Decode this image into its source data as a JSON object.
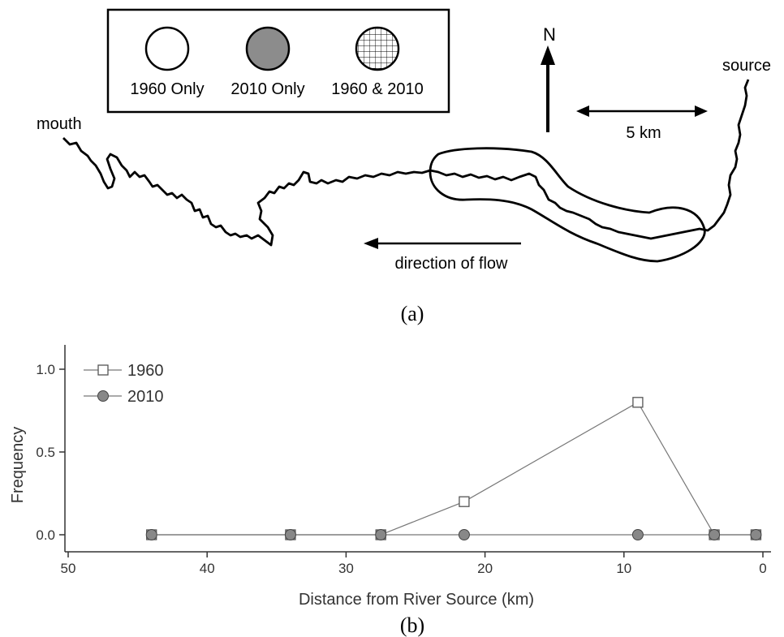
{
  "panel_a": {
    "caption": "(a)",
    "legend": [
      {
        "label": "1960 Only",
        "style": "open"
      },
      {
        "label": "2010 Only",
        "style": "filled"
      },
      {
        "label": "1960 & 2010",
        "style": "hatched"
      }
    ],
    "north_label": "N",
    "scale_label": "5 km",
    "flow_label": "direction of flow",
    "mouth_label": "mouth",
    "source_label": "source",
    "colors": {
      "ink": "#000000",
      "filled": "#8c8c8c"
    }
  },
  "panel_b": {
    "caption": "(b)"
  },
  "chart_data": {
    "type": "line",
    "xlabel": "Distance from River Source (km)",
    "ylabel": "Frequency",
    "xlim": [
      50,
      0
    ],
    "ylim": [
      -0.1,
      1.1
    ],
    "x_reversed": true,
    "xticks": [
      50,
      40,
      30,
      20,
      10,
      0
    ],
    "yticks": [
      0.0,
      0.5,
      1.0
    ],
    "ytick_labels": [
      "0.0",
      "0.5",
      "1.0"
    ],
    "x": [
      44.0,
      34.0,
      27.5,
      21.5,
      9.0,
      3.5,
      0.5
    ],
    "series": [
      {
        "name": "1960",
        "marker": "open-square",
        "color": "#000000",
        "values": [
          0.0,
          0.0,
          0.0,
          0.2,
          0.8,
          0.0,
          0.0
        ]
      },
      {
        "name": "2010",
        "marker": "filled-circle",
        "color": "#888888",
        "values": [
          0.0,
          0.0,
          0.0,
          0.0,
          0.0,
          0.0,
          0.0
        ]
      }
    ],
    "legend_position": "top-left",
    "grid": false
  }
}
